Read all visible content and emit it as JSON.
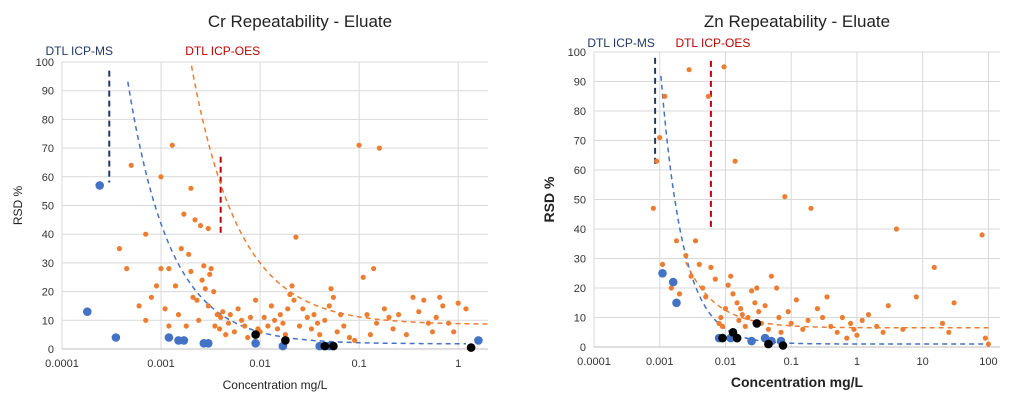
{
  "colors": {
    "orange": "#ED7D31",
    "blue": "#4472C4",
    "black": "#000000",
    "navy": "#1F3864",
    "red": "#C00000",
    "grid": "#D9D9D9"
  },
  "chart_data": [
    {
      "type": "scatter",
      "title": "Cr Repeatability - Eluate",
      "xlabel": "Concentration mg/L",
      "ylabel": "RSD %",
      "xscale": "log",
      "xlim": [
        0.0001,
        2
      ],
      "ylim": [
        0,
        100
      ],
      "xticks": [
        "0.0001",
        "0.001",
        "0.01",
        "0.1",
        "1"
      ],
      "yticks": [
        "0",
        "10",
        "20",
        "30",
        "40",
        "50",
        "60",
        "70",
        "80",
        "90",
        "100"
      ],
      "grid": true,
      "annotations": [
        {
          "text": "DTL ICP-MS",
          "x": 0.0003,
          "y_top": 97,
          "y_bottom": 58,
          "color": "navy"
        },
        {
          "text": "DTL ICP-OES",
          "x": 0.004,
          "y_top": 67,
          "y_bottom": 40,
          "color": "red"
        }
      ],
      "series": [
        {
          "color": "orange",
          "points": [
            [
              0.00038,
              35
            ],
            [
              0.00045,
              28
            ],
            [
              0.0005,
              64
            ],
            [
              0.0006,
              15
            ],
            [
              0.0007,
              40
            ],
            [
              0.0007,
              10
            ],
            [
              0.0008,
              18
            ],
            [
              0.0009,
              22
            ],
            [
              0.001,
              28
            ],
            [
              0.001,
              60
            ],
            [
              0.0011,
              14
            ],
            [
              0.0012,
              8
            ],
            [
              0.0012,
              28
            ],
            [
              0.0013,
              71
            ],
            [
              0.0014,
              22
            ],
            [
              0.0015,
              12
            ],
            [
              0.0016,
              35
            ],
            [
              0.0017,
              47
            ],
            [
              0.0018,
              8
            ],
            [
              0.0019,
              33
            ],
            [
              0.002,
              56
            ],
            [
              0.002,
              27
            ],
            [
              0.0021,
              18
            ],
            [
              0.0022,
              45
            ],
            [
              0.0023,
              17
            ],
            [
              0.0024,
              10
            ],
            [
              0.0025,
              43
            ],
            [
              0.0026,
              24
            ],
            [
              0.0027,
              29
            ],
            [
              0.0028,
              21
            ],
            [
              0.003,
              42
            ],
            [
              0.003,
              15
            ],
            [
              0.0031,
              26
            ],
            [
              0.0032,
              28
            ],
            [
              0.0034,
              20
            ],
            [
              0.0035,
              8
            ],
            [
              0.0037,
              12
            ],
            [
              0.0039,
              7
            ],
            [
              0.004,
              11
            ],
            [
              0.0042,
              13
            ],
            [
              0.0045,
              5
            ],
            [
              0.0048,
              9
            ],
            [
              0.005,
              12
            ],
            [
              0.0055,
              6
            ],
            [
              0.006,
              14
            ],
            [
              0.0065,
              10
            ],
            [
              0.007,
              8
            ],
            [
              0.0075,
              4
            ],
            [
              0.008,
              11
            ],
            [
              0.009,
              17
            ],
            [
              0.0095,
              7
            ],
            [
              0.01,
              6
            ],
            [
              0.011,
              11
            ],
            [
              0.012,
              8
            ],
            [
              0.013,
              15
            ],
            [
              0.014,
              10
            ],
            [
              0.015,
              7
            ],
            [
              0.016,
              12
            ],
            [
              0.017,
              9
            ],
            [
              0.018,
              5
            ],
            [
              0.019,
              14
            ],
            [
              0.02,
              19
            ],
            [
              0.021,
              22
            ],
            [
              0.022,
              17
            ],
            [
              0.023,
              39
            ],
            [
              0.025,
              8
            ],
            [
              0.027,
              14
            ],
            [
              0.03,
              11
            ],
            [
              0.033,
              7
            ],
            [
              0.035,
              12
            ],
            [
              0.038,
              9
            ],
            [
              0.04,
              5
            ],
            [
              0.045,
              10
            ],
            [
              0.05,
              15
            ],
            [
              0.052,
              21
            ],
            [
              0.055,
              18
            ],
            [
              0.06,
              6
            ],
            [
              0.065,
              12
            ],
            [
              0.07,
              8
            ],
            [
              0.08,
              4
            ],
            [
              0.09,
              3
            ],
            [
              0.1,
              71
            ],
            [
              0.11,
              25
            ],
            [
              0.12,
              12
            ],
            [
              0.13,
              5
            ],
            [
              0.14,
              28
            ],
            [
              0.15,
              9
            ],
            [
              0.16,
              70
            ],
            [
              0.18,
              14
            ],
            [
              0.2,
              11
            ],
            [
              0.22,
              7
            ],
            [
              0.25,
              12
            ],
            [
              0.3,
              5
            ],
            [
              0.35,
              18
            ],
            [
              0.4,
              13
            ],
            [
              0.45,
              17
            ],
            [
              0.5,
              9
            ],
            [
              0.55,
              6
            ],
            [
              0.6,
              11
            ],
            [
              0.65,
              18
            ],
            [
              0.7,
              15
            ],
            [
              0.8,
              9
            ],
            [
              0.9,
              6
            ],
            [
              1.0,
              16
            ],
            [
              1.2,
              14
            ]
          ]
        },
        {
          "color": "blue",
          "points": [
            [
              0.00018,
              13
            ],
            [
              0.00024,
              57
            ],
            [
              0.00035,
              4
            ],
            [
              0.0012,
              4
            ],
            [
              0.0015,
              3
            ],
            [
              0.0017,
              3
            ],
            [
              0.0027,
              2
            ],
            [
              0.003,
              2
            ],
            [
              0.009,
              2
            ],
            [
              0.017,
              1
            ],
            [
              0.04,
              1
            ],
            [
              0.05,
              1
            ],
            [
              1.6,
              3
            ]
          ]
        },
        {
          "color": "black",
          "points": [
            [
              0.009,
              5
            ],
            [
              0.018,
              3
            ],
            [
              0.045,
              1
            ],
            [
              0.055,
              1
            ],
            [
              1.35,
              0.5
            ]
          ]
        }
      ],
      "trendlines": [
        {
          "color": "blue",
          "x_from": 0.00015,
          "x_to": 1.2,
          "a": 0.039,
          "b": -1.01,
          "floor": 1.8
        },
        {
          "color": "orange",
          "x_from": 0.00065,
          "x_to": 2,
          "a": 0.34,
          "b": -0.9,
          "floor": 8.5
        }
      ]
    },
    {
      "type": "scatter",
      "title": "Zn Repeatability - Eluate",
      "xlabel": "Concentration mg/L",
      "ylabel": "RSD %",
      "xscale": "log",
      "xlim": [
        0.0001,
        150
      ],
      "ylim": [
        0,
        100
      ],
      "xticks": [
        "0.0001",
        "0.001",
        "0.01",
        "0.1",
        "1",
        "10",
        "100"
      ],
      "yticks": [
        "0",
        "10",
        "20",
        "30",
        "40",
        "50",
        "60",
        "70",
        "80",
        "90",
        "100"
      ],
      "grid": true,
      "annotations": [
        {
          "text": "DTL ICP-MS",
          "x": 0.00085,
          "y_top": 98,
          "y_bottom": 62,
          "color": "navy"
        },
        {
          "text": "DTL ICP-OES",
          "x": 0.006,
          "y_top": 97,
          "y_bottom": 40,
          "color": "red"
        }
      ],
      "series": [
        {
          "color": "orange",
          "points": [
            [
              0.0008,
              47
            ],
            [
              0.0009,
              63
            ],
            [
              0.001,
              71
            ],
            [
              0.0011,
              28
            ],
            [
              0.0012,
              85
            ],
            [
              0.0015,
              20
            ],
            [
              0.0018,
              36
            ],
            [
              0.002,
              18
            ],
            [
              0.0025,
              31
            ],
            [
              0.0028,
              94
            ],
            [
              0.003,
              24
            ],
            [
              0.0035,
              36
            ],
            [
              0.004,
              28
            ],
            [
              0.0045,
              20
            ],
            [
              0.005,
              17
            ],
            [
              0.0055,
              85
            ],
            [
              0.006,
              27
            ],
            [
              0.007,
              23
            ],
            [
              0.008,
              8
            ],
            [
              0.0085,
              10
            ],
            [
              0.009,
              7
            ],
            [
              0.0095,
              95
            ],
            [
              0.01,
              13
            ],
            [
              0.011,
              21
            ],
            [
              0.012,
              24
            ],
            [
              0.013,
              18
            ],
            [
              0.014,
              63
            ],
            [
              0.015,
              15
            ],
            [
              0.016,
              9
            ],
            [
              0.017,
              13
            ],
            [
              0.018,
              11
            ],
            [
              0.02,
              7
            ],
            [
              0.022,
              10
            ],
            [
              0.025,
              19
            ],
            [
              0.028,
              15
            ],
            [
              0.03,
              20
            ],
            [
              0.032,
              12
            ],
            [
              0.035,
              8
            ],
            [
              0.04,
              14
            ],
            [
              0.045,
              6
            ],
            [
              0.05,
              24
            ],
            [
              0.06,
              20
            ],
            [
              0.065,
              10
            ],
            [
              0.07,
              5
            ],
            [
              0.08,
              51
            ],
            [
              0.09,
              12
            ],
            [
              0.1,
              8
            ],
            [
              0.12,
              16
            ],
            [
              0.15,
              6
            ],
            [
              0.18,
              9
            ],
            [
              0.2,
              47
            ],
            [
              0.25,
              13
            ],
            [
              0.3,
              10
            ],
            [
              0.35,
              17
            ],
            [
              0.4,
              7
            ],
            [
              0.5,
              5
            ],
            [
              0.6,
              10
            ],
            [
              0.7,
              3
            ],
            [
              0.8,
              8
            ],
            [
              0.9,
              6
            ],
            [
              1.0,
              4
            ],
            [
              1.2,
              9
            ],
            [
              1.5,
              11
            ],
            [
              2.0,
              7
            ],
            [
              2.5,
              5
            ],
            [
              3.0,
              14
            ],
            [
              4.0,
              40
            ],
            [
              5.0,
              6
            ],
            [
              8.0,
              17
            ],
            [
              15,
              27
            ],
            [
              20,
              8
            ],
            [
              25,
              5
            ],
            [
              30,
              15
            ],
            [
              80,
              38
            ],
            [
              90,
              3
            ],
            [
              100,
              1
            ]
          ]
        },
        {
          "color": "blue",
          "points": [
            [
              0.0011,
              25
            ],
            [
              0.0016,
              22
            ],
            [
              0.0018,
              15
            ],
            [
              0.008,
              3
            ],
            [
              0.012,
              3
            ],
            [
              0.015,
              3
            ],
            [
              0.025,
              2
            ],
            [
              0.04,
              3
            ],
            [
              0.05,
              2
            ],
            [
              0.07,
              2
            ]
          ]
        },
        {
          "color": "black",
          "points": [
            [
              0.009,
              3
            ],
            [
              0.013,
              5
            ],
            [
              0.015,
              3
            ],
            [
              0.03,
              8
            ],
            [
              0.045,
              1
            ],
            [
              0.075,
              0.5
            ]
          ]
        }
      ],
      "trendlines": [
        {
          "color": "blue",
          "x_from": 0.0007,
          "x_to": 100,
          "a": 0.0148,
          "b": -1.27,
          "floor": 1.0
        },
        {
          "color": "orange",
          "x_from": 0.0025,
          "x_to": 100,
          "a": 0.075,
          "b": -0.95,
          "floor": 6.5
        }
      ]
    }
  ]
}
